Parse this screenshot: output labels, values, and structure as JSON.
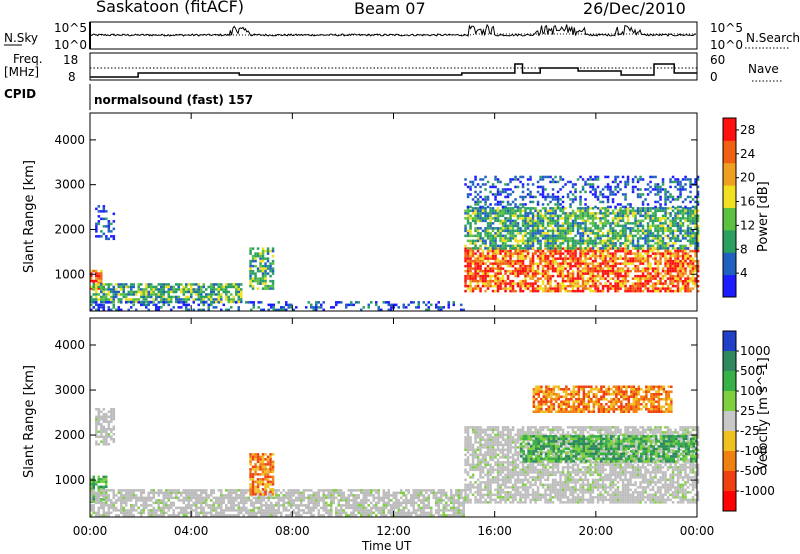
{
  "header": {
    "station": "Saskatoon (fitACF)",
    "beam": "Beam 07",
    "date": "26/Dec/2010"
  },
  "strip": {
    "nsky_label": "N.Sky",
    "nsky_ticks": [
      "10^5",
      "10^0"
    ],
    "nsearch_label": "N.Search",
    "nsearch_ticks": [
      "10^5",
      "10^0"
    ],
    "freq_label": "Freq.",
    "freq_unit": "[MHz]",
    "freq_ticks": [
      "18",
      "8"
    ],
    "nave_label": "Nave",
    "nave_ticks": [
      "60",
      "0"
    ],
    "cpid_label": "CPID",
    "cpid_value": "normalsound (fast) 157"
  },
  "colors": {
    "power_scale": [
      "#1c1cff",
      "#2060c0",
      "#2aa060",
      "#5cc040",
      "#f0e020",
      "#f0a020",
      "#f06010",
      "#ff1010"
    ],
    "velocity_scale": [
      "#2040c8",
      "#2e8a5e",
      "#38b048",
      "#7ed040",
      "#c8c8c8",
      "#f0c020",
      "#f08010",
      "#f04010",
      "#ff0000"
    ],
    "ground_scatter": "#bdbdbd"
  },
  "chart_data": [
    {
      "type": "heatmap",
      "title": "Power",
      "xlabel": "Time UT",
      "ylabel": "Slant Range [km]",
      "x_ticks": [
        "00:00",
        "04:00",
        "08:00",
        "12:00",
        "16:00",
        "20:00",
        "00:00"
      ],
      "xlim_hours": [
        0,
        24
      ],
      "y_ticks": [
        1000,
        2000,
        3000,
        4000
      ],
      "ylim": [
        180,
        4600
      ],
      "colorbar": {
        "label": "Power [dB]",
        "ticks": [
          4,
          8,
          12,
          16,
          20,
          24,
          28
        ],
        "range": [
          0,
          30
        ]
      },
      "scatter_regions": [
        {
          "t": [
            0.0,
            0.4
          ],
          "range": [
            700,
            1100
          ],
          "level": "high"
        },
        {
          "t": [
            0.0,
            6.0
          ],
          "range": [
            400,
            800
          ],
          "level": "medium"
        },
        {
          "t": [
            0.0,
            14.8
          ],
          "range": [
            200,
            400
          ],
          "level": "low"
        },
        {
          "t": [
            0.2,
            0.9
          ],
          "range": [
            1800,
            2600
          ],
          "level": "low"
        },
        {
          "t": [
            6.3,
            7.2
          ],
          "range": [
            700,
            1600
          ],
          "level": "medium"
        },
        {
          "t": [
            14.8,
            24.0
          ],
          "range": [
            600,
            1600
          ],
          "level": "high"
        },
        {
          "t": [
            14.8,
            24.0
          ],
          "range": [
            1600,
            2500
          ],
          "level": "medium"
        },
        {
          "t": [
            14.8,
            24.0
          ],
          "range": [
            2500,
            3200
          ],
          "level": "low"
        }
      ]
    },
    {
      "type": "heatmap",
      "title": "Velocity",
      "xlabel": "Time UT",
      "ylabel": "Slant Range [km]",
      "x_ticks": [
        "00:00",
        "04:00",
        "08:00",
        "12:00",
        "16:00",
        "20:00",
        "00:00"
      ],
      "xlim_hours": [
        0,
        24
      ],
      "y_ticks": [
        1000,
        2000,
        3000,
        4000
      ],
      "ylim": [
        180,
        4600
      ],
      "colorbar": {
        "label": "Velocity [m s^-1]",
        "ticks": [
          "1000",
          "500",
          "100",
          "25",
          "-25",
          "-100",
          "-500",
          "-1000"
        ]
      },
      "scatter_regions": [
        {
          "t": [
            0.0,
            0.6
          ],
          "range": [
            500,
            1100
          ],
          "level": "positive"
        },
        {
          "t": [
            0.0,
            14.8
          ],
          "range": [
            200,
            800
          ],
          "level": "ground"
        },
        {
          "t": [
            0.2,
            0.9
          ],
          "range": [
            1800,
            2600
          ],
          "level": "ground"
        },
        {
          "t": [
            6.3,
            7.2
          ],
          "range": [
            700,
            1600
          ],
          "level": "negative"
        },
        {
          "t": [
            14.8,
            24.0
          ],
          "range": [
            500,
            2200
          ],
          "level": "ground"
        },
        {
          "t": [
            17.5,
            23.0
          ],
          "range": [
            2500,
            3100
          ],
          "level": "negative"
        },
        {
          "t": [
            17.0,
            24.0
          ],
          "range": [
            1400,
            2000
          ],
          "level": "positive"
        }
      ]
    }
  ]
}
